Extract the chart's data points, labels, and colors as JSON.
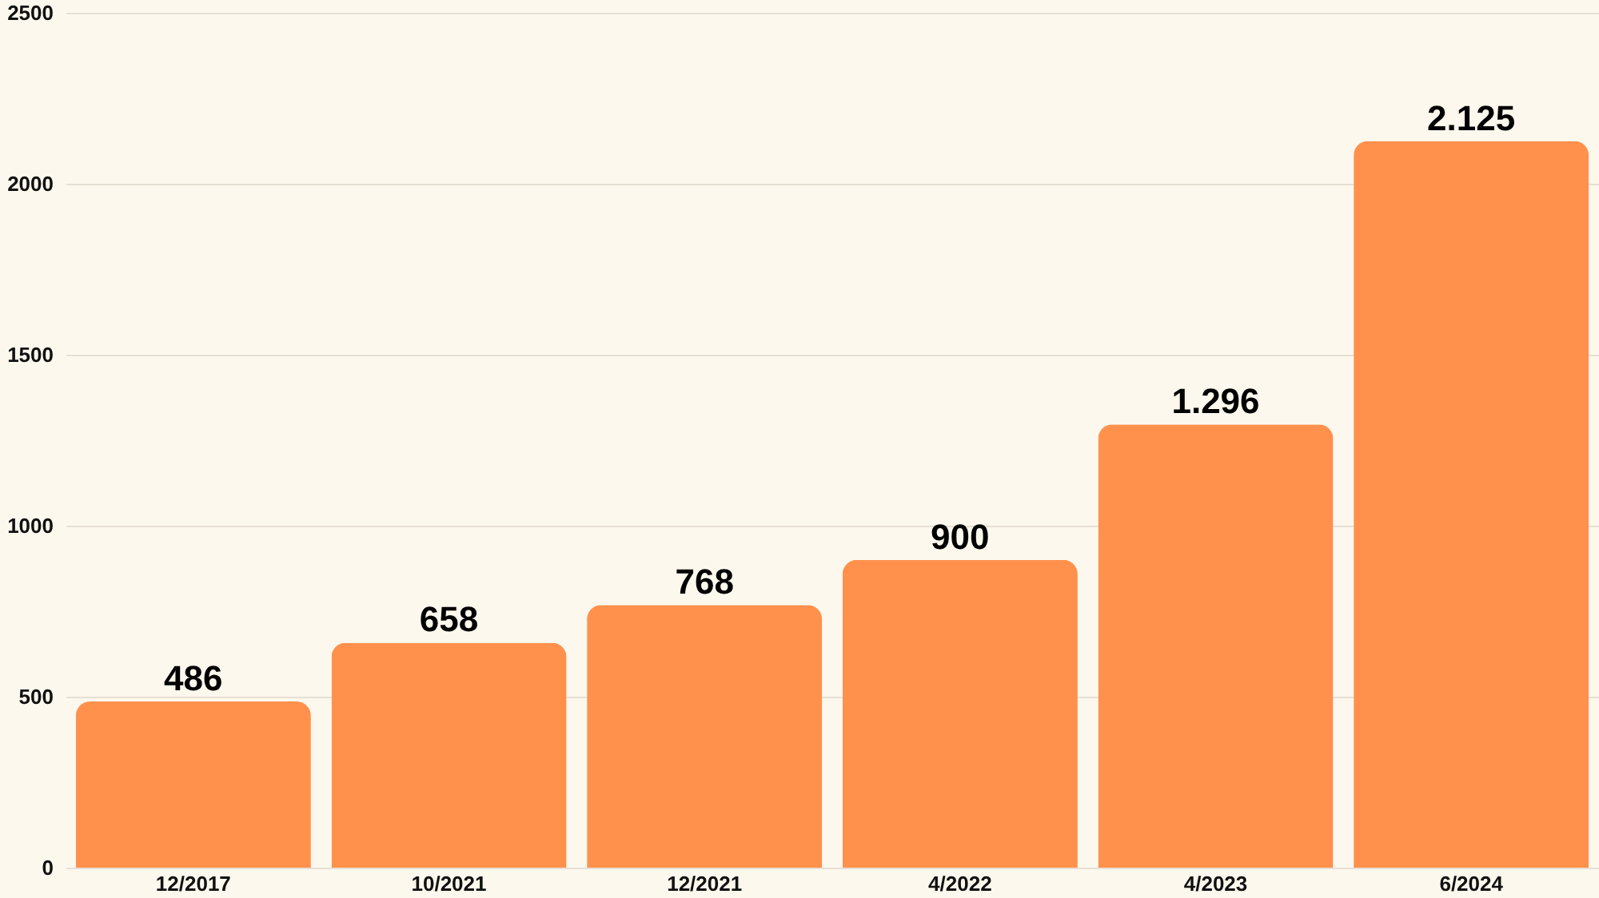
{
  "chart_data": {
    "type": "bar",
    "categories": [
      "12/2017",
      "10/2021",
      "12/2021",
      "4/2022",
      "4/2023",
      "6/2024"
    ],
    "values": [
      486,
      658,
      768,
      900,
      1296,
      2125
    ],
    "value_labels": [
      "486",
      "658",
      "768",
      "900",
      "1.296",
      "2.125"
    ],
    "color": "#ff914d",
    "ylim": [
      0,
      2500
    ],
    "yticks": [
      0,
      500,
      1000,
      1500,
      2000,
      2500
    ],
    "grid": "y"
  }
}
